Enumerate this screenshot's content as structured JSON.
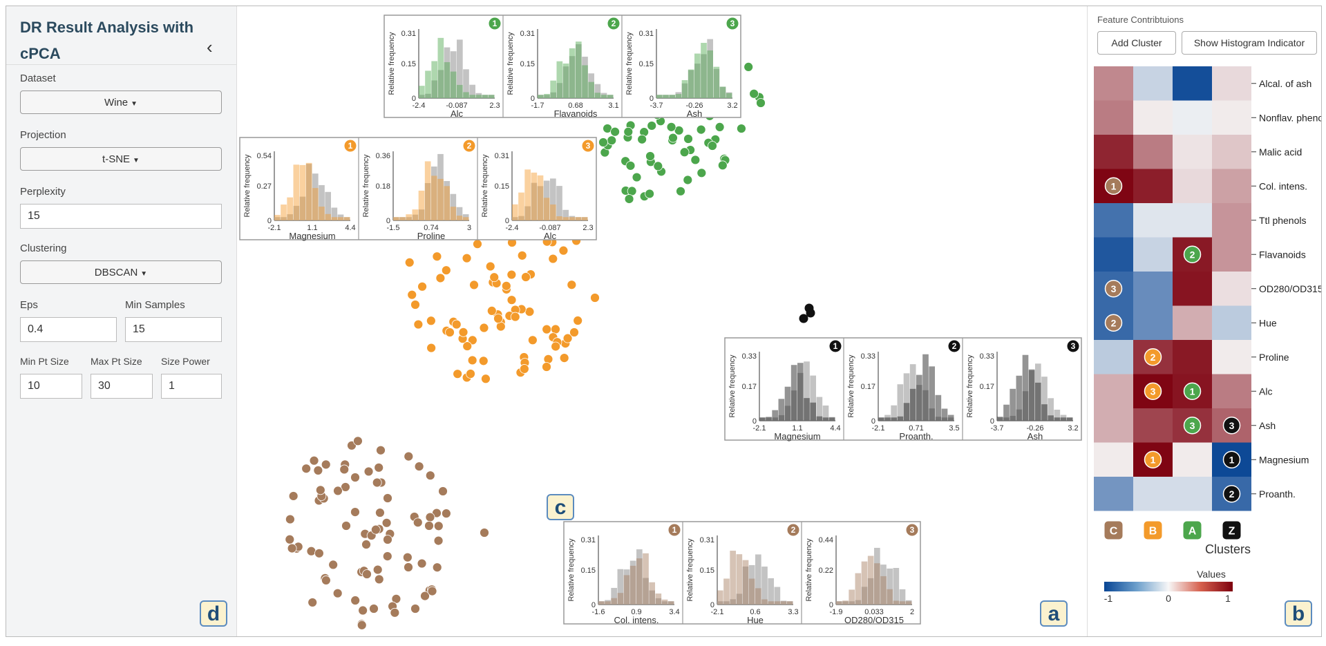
{
  "sidebar": {
    "title": "DR Result Analysis with cPCA",
    "collapse_glyph": "‹",
    "dataset_label": "Dataset",
    "dataset_value": "Wine",
    "projection_label": "Projection",
    "projection_value": "t-SNE",
    "perplexity_label": "Perplexity",
    "perplexity_value": "15",
    "clustering_label": "Clustering",
    "clustering_value": "DBSCAN",
    "eps_label": "Eps",
    "eps_value": "0.4",
    "min_samples_label": "Min Samples",
    "min_samples_value": "15",
    "min_pt_label": "Min Pt Size",
    "min_pt_value": "10",
    "max_pt_label": "Max Pt Size",
    "max_pt_value": "30",
    "size_power_label": "Size Power",
    "size_power_value": "1",
    "corner_label": "d"
  },
  "main": {
    "corner_label": "a",
    "callout_label": "c"
  },
  "right": {
    "title": "Feature Contribtuions",
    "add_cluster_label": "Add Cluster",
    "show_hist_label": "Show Histogram Indicator",
    "corner_label": "b",
    "clusters_label": "Clusters",
    "values_label": "Values",
    "legend_min": "-1",
    "legend_mid": "0",
    "legend_max": "1"
  },
  "colors": {
    "green": "#4ca64c",
    "orange": "#f39a2b",
    "brown": "#a57b5b",
    "black": "#111111",
    "gray": "#b3b3b3"
  },
  "heatmap": {
    "features": [
      "Alcal. of ash",
      "Nonflav. phenols",
      "Malic acid",
      "Col. intens.",
      "Ttl phenols",
      "Flavanoids",
      "OD280/OD315",
      "Hue",
      "Proline",
      "Alc",
      "Ash",
      "Magnesium",
      "Proanth."
    ],
    "clusters": [
      {
        "letter": "C",
        "color": "#a57b5b"
      },
      {
        "letter": "B",
        "color": "#f39a2b"
      },
      {
        "letter": "A",
        "color": "#4ca64c"
      },
      {
        "letter": "Z",
        "color": "#111111"
      }
    ],
    "values": [
      [
        0.45,
        -0.2,
        -0.95,
        0.12
      ],
      [
        0.5,
        0.05,
        -0.05,
        0.05
      ],
      [
        0.85,
        0.5,
        0.08,
        0.2
      ],
      [
        0.98,
        0.88,
        0.12,
        0.35
      ],
      [
        -0.75,
        -0.1,
        -0.1,
        0.4
      ],
      [
        -0.9,
        -0.2,
        0.9,
        0.4
      ],
      [
        -0.8,
        -0.6,
        0.92,
        0.1
      ],
      [
        -0.8,
        -0.6,
        0.3,
        -0.25
      ],
      [
        -0.25,
        0.8,
        0.9,
        0.05
      ],
      [
        0.3,
        0.98,
        0.92,
        0.5
      ],
      [
        0.3,
        0.72,
        0.8,
        0.6
      ],
      [
        0.05,
        0.98,
        0.05,
        -0.98
      ],
      [
        -0.55,
        -0.15,
        -0.15,
        -0.8
      ]
    ],
    "badges": [
      {
        "row": 3,
        "col": 0,
        "num": "1",
        "color": "#a57b5b"
      },
      {
        "row": 6,
        "col": 0,
        "num": "3",
        "color": "#a57b5b"
      },
      {
        "row": 7,
        "col": 0,
        "num": "2",
        "color": "#a57b5b"
      },
      {
        "row": 5,
        "col": 2,
        "num": "2",
        "color": "#4ca64c"
      },
      {
        "row": 9,
        "col": 2,
        "num": "1",
        "color": "#4ca64c"
      },
      {
        "row": 10,
        "col": 2,
        "num": "3",
        "color": "#4ca64c"
      },
      {
        "row": 8,
        "col": 1,
        "num": "2",
        "color": "#f39a2b"
      },
      {
        "row": 9,
        "col": 1,
        "num": "3",
        "color": "#f39a2b"
      },
      {
        "row": 11,
        "col": 1,
        "num": "1",
        "color": "#f39a2b"
      },
      {
        "row": 10,
        "col": 3,
        "num": "3",
        "color": "#111111"
      },
      {
        "row": 11,
        "col": 3,
        "num": "1",
        "color": "#111111"
      },
      {
        "row": 12,
        "col": 3,
        "num": "2",
        "color": "#111111"
      }
    ]
  },
  "scatter": {
    "green": [
      [
        917,
        125
      ],
      [
        872,
        205
      ],
      [
        950,
        165
      ],
      [
        1010,
        125
      ],
      [
        1060,
        160
      ],
      [
        1100,
        148
      ],
      [
        995,
        200
      ],
      [
        940,
        225
      ],
      [
        855,
        250
      ],
      [
        1030,
        210
      ]
    ],
    "orange": [
      [
        700,
        335
      ],
      [
        740,
        350
      ],
      [
        800,
        300
      ],
      [
        760,
        400
      ],
      [
        720,
        460
      ],
      [
        650,
        480
      ],
      [
        680,
        540
      ],
      [
        790,
        530
      ],
      [
        830,
        480
      ],
      [
        860,
        430
      ],
      [
        600,
        440
      ]
    ],
    "brown": [
      [
        513,
        690
      ],
      [
        560,
        720
      ],
      [
        640,
        710
      ],
      [
        620,
        760
      ],
      [
        560,
        780
      ],
      [
        530,
        830
      ],
      [
        590,
        820
      ],
      [
        600,
        880
      ],
      [
        540,
        880
      ],
      [
        500,
        760
      ],
      [
        700,
        770
      ]
    ],
    "black": [
      [
        1170,
        445
      ],
      [
        1162,
        460
      ],
      [
        1172,
        452
      ]
    ]
  },
  "histograms": [
    {
      "color": "#4ca64c",
      "ylabel": "Relative frequency",
      "panels": [
        {
          "num": "1",
          "xlabel": "Alc",
          "ymax": "0.31",
          "ymid": "0.15",
          "ticks": [
            "-2.4",
            "-0.087",
            "2.3"
          ]
        },
        {
          "num": "2",
          "xlabel": "Flavanoids",
          "ymax": "0.31",
          "ymid": "0.15",
          "ticks": [
            "-1.7",
            "0.68",
            "3.1"
          ]
        },
        {
          "num": "3",
          "xlabel": "Ash",
          "ymax": "0.31",
          "ymid": "0.15",
          "ticks": [
            "-3.7",
            "-0.26",
            "3.2"
          ]
        }
      ]
    },
    {
      "color": "#f39a2b",
      "ylabel": "Relative frequency",
      "panels": [
        {
          "num": "1",
          "xlabel": "Magnesium",
          "ymax": "0.54",
          "ymid": "0.27",
          "ticks": [
            "-2.1",
            "1.1",
            "4.4"
          ]
        },
        {
          "num": "2",
          "xlabel": "Proline",
          "ymax": "0.36",
          "ymid": "0.18",
          "ticks": [
            "-1.5",
            "0.74",
            "3"
          ]
        },
        {
          "num": "3",
          "xlabel": "Alc",
          "ymax": "0.31",
          "ymid": "0.15",
          "ticks": [
            "-2.4",
            "-0.087",
            "2.3"
          ]
        }
      ]
    },
    {
      "color": "#111111",
      "ylabel": "Relative frequency",
      "panels": [
        {
          "num": "1",
          "xlabel": "Magnesium",
          "ymax": "0.33",
          "ymid": "0.17",
          "ticks": [
            "-2.1",
            "1.1",
            "4.4"
          ]
        },
        {
          "num": "2",
          "xlabel": "Proanth.",
          "ymax": "0.33",
          "ymid": "0.17",
          "ticks": [
            "-2.1",
            "0.71",
            "3.5"
          ]
        },
        {
          "num": "3",
          "xlabel": "Ash",
          "ymax": "0.33",
          "ymid": "0.17",
          "ticks": [
            "-3.7",
            "-0.26",
            "3.2"
          ]
        }
      ]
    },
    {
      "color": "#a57b5b",
      "ylabel": "Relative frequency",
      "panels": [
        {
          "num": "1",
          "xlabel": "Col. intens.",
          "ymax": "0.31",
          "ymid": "0.15",
          "ticks": [
            "-1.6",
            "0.9",
            "3.4"
          ]
        },
        {
          "num": "2",
          "xlabel": "Hue",
          "ymax": "0.31",
          "ymid": "0.15",
          "ticks": [
            "-2.1",
            "0.6",
            "3.3"
          ]
        },
        {
          "num": "3",
          "xlabel": "OD280/OD315",
          "ymax": "0.44",
          "ymid": "0.22",
          "ticks": [
            "-1.9",
            "0.033",
            "2"
          ]
        }
      ]
    }
  ]
}
